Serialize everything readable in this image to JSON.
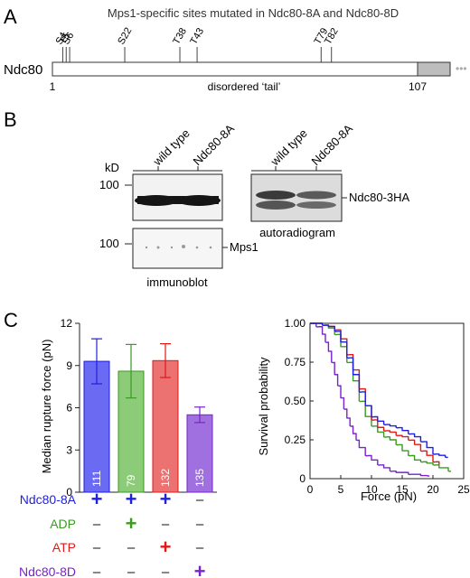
{
  "panel_a": {
    "letter": "A",
    "title": "Mps1-specific sites mutated in Ndc80-8A and Ndc80-8D",
    "protein": "Ndc80",
    "start": "1",
    "end": "107",
    "region_label": "disordered ‘tail’",
    "sites": [
      {
        "label": "S4",
        "pos": 4
      },
      {
        "label": "T5",
        "pos": 5
      },
      {
        "label": "S6",
        "pos": 6
      },
      {
        "label": "S22",
        "pos": 22
      },
      {
        "label": "T38",
        "pos": 38
      },
      {
        "label": "T43",
        "pos": 43
      },
      {
        "label": "T79",
        "pos": 79
      },
      {
        "label": "T82",
        "pos": 82
      }
    ],
    "ellipsis": "•••"
  },
  "panel_b": {
    "letter": "B",
    "kd": "kD",
    "marker_100_top": "100",
    "marker_100_bottom": "100",
    "lane1": "wild type",
    "lane2": "Ndc80-8A",
    "lane1_right": "wild type",
    "lane2_right": "Ndc80-8A",
    "mps1": "Mps1",
    "ndc80_3ha": "Ndc80-3HA",
    "immunoblot": "immunoblot",
    "autoradiogram": "autoradiogram"
  },
  "panel_c": {
    "letter": "C",
    "conditions": [
      {
        "name": "Ndc80-8A",
        "color": "#1f1fe0",
        "marks": [
          "+",
          "+",
          "+",
          "–"
        ]
      },
      {
        "name": "ADP",
        "color": "#3a9a22",
        "marks": [
          "–",
          "+",
          "–",
          "–"
        ]
      },
      {
        "name": "ATP",
        "color": "#e01818",
        "marks": [
          "–",
          "–",
          "+",
          "–"
        ]
      },
      {
        "name": "Ndc80-8D",
        "color": "#7a22cc",
        "marks": [
          "–",
          "–",
          "–",
          "+"
        ]
      }
    ]
  },
  "chart_data": [
    {
      "type": "bar",
      "ylabel": "Median rupture force (pN)",
      "ylim": [
        0,
        12
      ],
      "yticks": [
        "0",
        "3",
        "6",
        "9",
        "12"
      ],
      "grid": false,
      "values": [
        9.3,
        8.6,
        9.35,
        5.5
      ],
      "errors": [
        1.6,
        1.9,
        1.2,
        0.55
      ],
      "counts": [
        "111",
        "79",
        "132",
        "135"
      ],
      "colors": [
        "#6a6af2",
        "#8ccc78",
        "#ec7272",
        "#a070e0"
      ],
      "edge_colors": [
        "#1f1fe0",
        "#3a9a22",
        "#e01818",
        "#7a22cc"
      ]
    },
    {
      "type": "line",
      "xlabel": "Force (pN)",
      "ylabel": "Survival probability",
      "xlim": [
        0,
        25
      ],
      "ylim": [
        0,
        1
      ],
      "xticks": [
        "0",
        "5",
        "10",
        "15",
        "20",
        "25"
      ],
      "yticks": [
        "0",
        "0.25",
        "0.50",
        "0.75",
        "1.00"
      ],
      "grid": false,
      "series": [
        {
          "color": "#7a22cc",
          "x": [
            0,
            1,
            2,
            2.5,
            3,
            3.5,
            4,
            4.5,
            5,
            5.5,
            6,
            6.5,
            7,
            7.5,
            8,
            9,
            10,
            11,
            12,
            13,
            14,
            16,
            18,
            19
          ],
          "y": [
            1.0,
            0.98,
            0.93,
            0.88,
            0.82,
            0.75,
            0.67,
            0.6,
            0.52,
            0.45,
            0.39,
            0.34,
            0.29,
            0.25,
            0.2,
            0.15,
            0.12,
            0.09,
            0.07,
            0.05,
            0.04,
            0.03,
            0.02,
            0.02
          ]
        },
        {
          "color": "#3a9a22",
          "x": [
            0,
            2,
            3,
            4,
            5,
            6,
            7,
            8,
            9,
            10,
            11,
            12,
            13,
            14,
            15,
            16,
            17,
            18,
            19,
            20,
            21,
            22.5
          ],
          "y": [
            1.0,
            0.99,
            0.97,
            0.93,
            0.85,
            0.75,
            0.63,
            0.5,
            0.4,
            0.34,
            0.3,
            0.27,
            0.25,
            0.22,
            0.18,
            0.15,
            0.12,
            0.11,
            0.1,
            0.09,
            0.07,
            0.05
          ]
        },
        {
          "color": "#e01818",
          "x": [
            0,
            2,
            3,
            4,
            5,
            6,
            7,
            8,
            9,
            10,
            11,
            12,
            13,
            14,
            15,
            16,
            17,
            18,
            19,
            20,
            21
          ],
          "y": [
            1.0,
            0.99,
            0.98,
            0.96,
            0.9,
            0.8,
            0.7,
            0.58,
            0.47,
            0.38,
            0.33,
            0.31,
            0.3,
            0.28,
            0.27,
            0.25,
            0.22,
            0.18,
            0.15,
            0.11,
            0.09
          ]
        },
        {
          "color": "#1f1fe0",
          "x": [
            0,
            2,
            3,
            4,
            5,
            6,
            7,
            8,
            9,
            10,
            11,
            12,
            13,
            14,
            15,
            16,
            17,
            18,
            19,
            20,
            21,
            22
          ],
          "y": [
            1.0,
            0.99,
            0.98,
            0.95,
            0.88,
            0.78,
            0.67,
            0.56,
            0.47,
            0.4,
            0.37,
            0.35,
            0.34,
            0.33,
            0.31,
            0.29,
            0.27,
            0.24,
            0.2,
            0.16,
            0.15,
            0.14
          ]
        }
      ]
    }
  ]
}
